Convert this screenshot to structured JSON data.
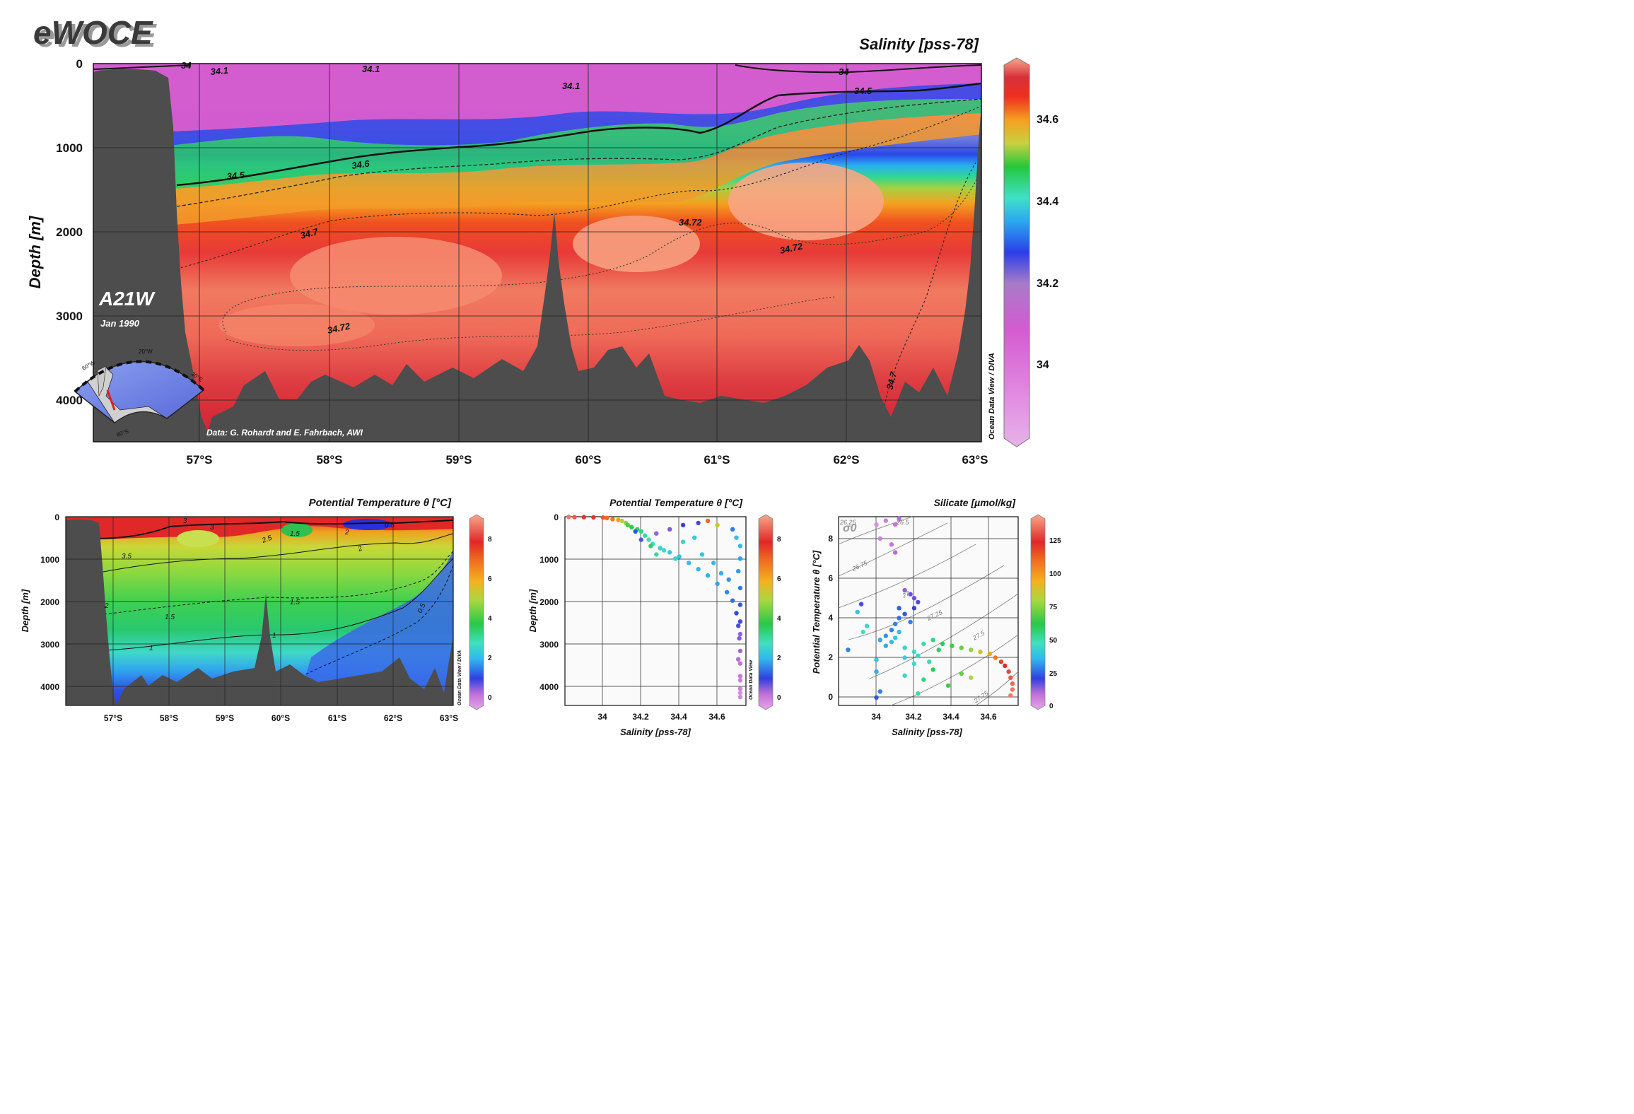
{
  "header": {
    "logo": "eWOCE"
  },
  "main_section": {
    "title": "Salinity [pss-78]",
    "ylabel": "Depth [m]",
    "section_name": "A21W",
    "date": "Jan 1990",
    "credit": "Data: G. Rohardt and E. Fahrbach, AWI",
    "watermark": "Ocean Data View / DIVA",
    "inset_map_labels": [
      "60°W",
      "20°W",
      "20°E",
      "80°S"
    ],
    "colors": {
      "land": "#4d4d4d",
      "deep": "#d8303a",
      "max": "#f58a6e",
      "surface": "#d45bd0"
    }
  },
  "chart_data": [
    {
      "type": "heatmap",
      "title": "Salinity [pss-78]",
      "ylabel": "Depth [m]",
      "x_ticks": [
        "57°S",
        "58°S",
        "59°S",
        "60°S",
        "61°S",
        "62°S",
        "63°S"
      ],
      "y_ticks": [
        0,
        1000,
        2000,
        3000,
        4000
      ],
      "ylim": [
        0,
        4500
      ],
      "colorbar_ticks": [
        34,
        34.2,
        34.4,
        34.6
      ],
      "colorbar_range": [
        33.8,
        34.75
      ],
      "contour_labels": [
        "34",
        "34.1",
        "34.1",
        "34.1",
        "34",
        "34.5",
        "34.5",
        "34.6",
        "34.7",
        "34.72",
        "34.72",
        "34.72",
        "34.7"
      ],
      "grid": true
    },
    {
      "type": "heatmap",
      "title": "Potential Temperature θ [°C]",
      "ylabel": "Depth [m]",
      "x_ticks": [
        "57°S",
        "58°S",
        "59°S",
        "60°S",
        "61°S",
        "62°S",
        "63°S"
      ],
      "y_ticks": [
        0,
        1000,
        2000,
        3000,
        4000
      ],
      "ylim": [
        0,
        4500
      ],
      "colorbar_ticks": [
        0,
        2,
        4,
        6,
        8
      ],
      "colorbar_range": [
        -0.5,
        9
      ],
      "contour_labels": [
        "3",
        "2.5",
        "3",
        "1.5",
        "3.5",
        "2",
        "2",
        "0.5",
        "2",
        "1.5",
        "1.5",
        "1",
        "1",
        "0.5"
      ],
      "grid": true
    },
    {
      "type": "scatter",
      "title": "Potential Temperature θ [°C]",
      "xlabel": "Salinity [pss-78]",
      "ylabel": "Depth [m]",
      "x_ticks": [
        34,
        34.2,
        34.4,
        34.6
      ],
      "y_ticks": [
        0,
        1000,
        2000,
        3000,
        4000
      ],
      "xlim": [
        33.8,
        34.75
      ],
      "ylim": [
        0,
        4500
      ],
      "colorbar_ticks": [
        0,
        2,
        4,
        6,
        8
      ],
      "colorbar_range": [
        -0.5,
        9
      ],
      "watermark": "Ocean Data View",
      "points": [
        [
          33.82,
          5,
          8.5
        ],
        [
          33.85,
          10,
          8.2
        ],
        [
          33.9,
          10,
          7.8
        ],
        [
          33.95,
          15,
          7.5
        ],
        [
          34.0,
          20,
          7.0
        ],
        [
          34.02,
          30,
          6.8
        ],
        [
          34.05,
          60,
          6.5
        ],
        [
          34.08,
          80,
          6.0
        ],
        [
          34.1,
          100,
          5.0
        ],
        [
          34.12,
          150,
          4.5
        ],
        [
          34.13,
          200,
          4.0
        ],
        [
          34.15,
          250,
          3.6
        ],
        [
          34.18,
          300,
          3.4
        ],
        [
          34.2,
          350,
          3.2
        ],
        [
          34.22,
          450,
          3.0
        ],
        [
          34.24,
          550,
          2.8
        ],
        [
          34.26,
          650,
          2.6
        ],
        [
          34.3,
          750,
          2.4
        ],
        [
          34.35,
          850,
          2.3
        ],
        [
          34.4,
          950,
          2.2
        ],
        [
          34.45,
          1100,
          2.1
        ],
        [
          34.5,
          1250,
          2.0
        ],
        [
          34.55,
          1400,
          1.9
        ],
        [
          34.6,
          1600,
          1.8
        ],
        [
          34.65,
          1800,
          1.6
        ],
        [
          34.68,
          2000,
          1.4
        ],
        [
          34.7,
          2300,
          1.1
        ],
        [
          34.71,
          2600,
          0.9
        ],
        [
          34.715,
          2900,
          0.6
        ],
        [
          34.72,
          3200,
          0.4
        ],
        [
          34.72,
          3500,
          0.2
        ],
        [
          34.72,
          3800,
          0.1
        ],
        [
          34.72,
          4100,
          0.0
        ],
        [
          34.72,
          4300,
          -0.1
        ],
        [
          34.17,
          350,
          1.2
        ],
        [
          34.2,
          550,
          0.8
        ],
        [
          34.28,
          400,
          0.5
        ],
        [
          34.35,
          300,
          0.6
        ],
        [
          34.42,
          200,
          1.0
        ],
        [
          34.5,
          150,
          0.9
        ],
        [
          34.55,
          100,
          6.8
        ],
        [
          34.6,
          200,
          5.2
        ],
        [
          34.68,
          300,
          1.5
        ],
        [
          34.7,
          500,
          2.1
        ],
        [
          34.72,
          700,
          2.0
        ],
        [
          34.72,
          1000,
          1.8
        ],
        [
          34.71,
          1300,
          1.7
        ],
        [
          34.72,
          1700,
          1.5
        ],
        [
          34.72,
          2100,
          1.2
        ],
        [
          34.72,
          2500,
          0.9
        ],
        [
          34.72,
          2800,
          0.5
        ],
        [
          34.71,
          3400,
          0.3
        ],
        [
          34.72,
          3900,
          0.0
        ],
        [
          34.72,
          4200,
          -0.2
        ],
        [
          34.32,
          800,
          2.6
        ],
        [
          34.38,
          1000,
          2.4
        ],
        [
          34.42,
          600,
          2.5
        ],
        [
          34.48,
          500,
          2.3
        ],
        [
          34.52,
          900,
          2.2
        ],
        [
          34.58,
          1100,
          2.0
        ],
        [
          34.62,
          1350,
          1.9
        ],
        [
          34.66,
          1500,
          1.7
        ],
        [
          34.25,
          700,
          3.4
        ],
        [
          34.28,
          900,
          3.0
        ]
      ]
    },
    {
      "type": "scatter",
      "title": "Silicate [µmol/kg]",
      "xlabel": "Salinity [pss-78]",
      "ylabel": "Potential Temperature θ [°C]",
      "x_ticks": [
        34,
        34.2,
        34.4,
        34.6
      ],
      "y_ticks": [
        0,
        2,
        4,
        6,
        8
      ],
      "xlim": [
        33.8,
        34.75
      ],
      "ylim": [
        -0.5,
        9
      ],
      "colorbar_ticks": [
        0,
        25,
        50,
        75,
        100,
        125
      ],
      "colorbar_range": [
        0,
        140
      ],
      "isopycnal_labels": [
        "26.25",
        "26.5",
        "26.75",
        "27",
        "27.25",
        "27.5",
        "27.75"
      ],
      "sigma_label": "σ0",
      "points": [
        [
          34.0,
          8.6,
          5
        ],
        [
          34.05,
          8.8,
          8
        ],
        [
          34.1,
          8.6,
          10
        ],
        [
          34.12,
          8.9,
          12
        ],
        [
          34.02,
          7.9,
          8
        ],
        [
          34.08,
          7.6,
          10
        ],
        [
          34.1,
          7.2,
          12
        ],
        [
          34.15,
          5.3,
          15
        ],
        [
          34.18,
          5.1,
          18
        ],
        [
          34.2,
          4.9,
          18
        ],
        [
          34.22,
          4.7,
          20
        ],
        [
          34.2,
          4.4,
          22
        ],
        [
          34.15,
          4.1,
          25
        ],
        [
          34.12,
          3.9,
          28
        ],
        [
          34.1,
          3.6,
          30
        ],
        [
          34.08,
          3.3,
          30
        ],
        [
          34.05,
          3.0,
          32
        ],
        [
          34.02,
          2.8,
          35
        ],
        [
          34.05,
          2.5,
          35
        ],
        [
          34.08,
          2.7,
          38
        ],
        [
          34.1,
          2.9,
          40
        ],
        [
          34.12,
          3.2,
          38
        ],
        [
          34.15,
          2.4,
          45
        ],
        [
          34.2,
          2.2,
          45
        ],
        [
          34.25,
          2.6,
          50
        ],
        [
          34.3,
          2.8,
          55
        ],
        [
          34.35,
          2.6,
          60
        ],
        [
          34.4,
          2.5,
          65
        ],
        [
          34.45,
          2.4,
          70
        ],
        [
          34.5,
          2.3,
          75
        ],
        [
          34.55,
          2.2,
          85
        ],
        [
          34.6,
          2.1,
          95
        ],
        [
          34.63,
          1.9,
          105
        ],
        [
          34.66,
          1.7,
          115
        ],
        [
          34.68,
          1.5,
          120
        ],
        [
          34.7,
          1.2,
          125
        ],
        [
          34.71,
          0.9,
          128
        ],
        [
          34.72,
          0.6,
          130
        ],
        [
          34.72,
          0.3,
          132
        ],
        [
          34.71,
          0.0,
          133
        ],
        [
          33.85,
          2.3,
          30
        ],
        [
          33.9,
          4.2,
          40
        ],
        [
          33.95,
          3.5,
          45
        ],
        [
          34.0,
          1.8,
          40
        ],
        [
          34.0,
          1.2,
          35
        ],
        [
          34.02,
          0.2,
          30
        ],
        [
          34.0,
          -0.1,
          25
        ],
        [
          34.15,
          1.0,
          45
        ],
        [
          34.2,
          1.6,
          45
        ],
        [
          34.25,
          0.8,
          55
        ],
        [
          34.22,
          0.1,
          50
        ],
        [
          34.3,
          1.3,
          60
        ],
        [
          34.38,
          0.5,
          65
        ],
        [
          34.45,
          1.1,
          70
        ],
        [
          34.5,
          0.9,
          80
        ],
        [
          34.15,
          1.9,
          42
        ],
        [
          34.22,
          2.0,
          44
        ],
        [
          34.28,
          1.7,
          50
        ],
        [
          34.33,
          2.3,
          58
        ],
        [
          34.18,
          3.7,
          30
        ],
        [
          34.12,
          4.4,
          26
        ],
        [
          33.92,
          4.6,
          20
        ],
        [
          33.93,
          3.2,
          48
        ]
      ]
    }
  ]
}
